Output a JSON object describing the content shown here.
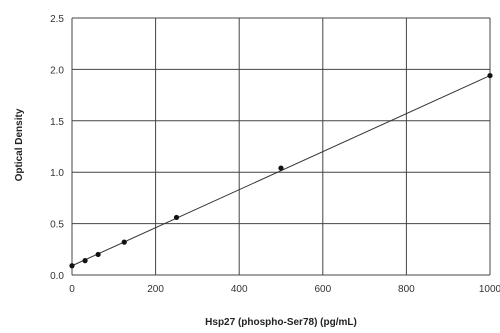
{
  "chart_data": {
    "type": "scatter",
    "title": "",
    "xlabel": "Hsp27 (phospho-Ser78) (pg/mL)",
    "ylabel": "Optical Density",
    "xlim": [
      0,
      1000
    ],
    "ylim": [
      0,
      2.5
    ],
    "x_ticks": [
      "0",
      "200",
      "400",
      "600",
      "800",
      "1000"
    ],
    "y_ticks": [
      "0.0",
      "0.5",
      "1.0",
      "1.5",
      "2.0",
      "2.5"
    ],
    "grid": true,
    "legend": "none",
    "series": [
      {
        "points": [
          {
            "x": 0,
            "y": 0.09
          },
          {
            "x": 31.25,
            "y": 0.14
          },
          {
            "x": 62.5,
            "y": 0.2
          },
          {
            "x": 125,
            "y": 0.32
          },
          {
            "x": 250,
            "y": 0.56
          },
          {
            "x": 500,
            "y": 1.04
          },
          {
            "x": 1000,
            "y": 1.94
          }
        ],
        "fit_line": [
          {
            "x": 0,
            "y": 0.09
          },
          {
            "x": 1000,
            "y": 1.94
          }
        ]
      }
    ],
    "colors": {
      "grid": "#444444",
      "line": "#333333",
      "point": "#111111",
      "text": "#333333"
    }
  }
}
